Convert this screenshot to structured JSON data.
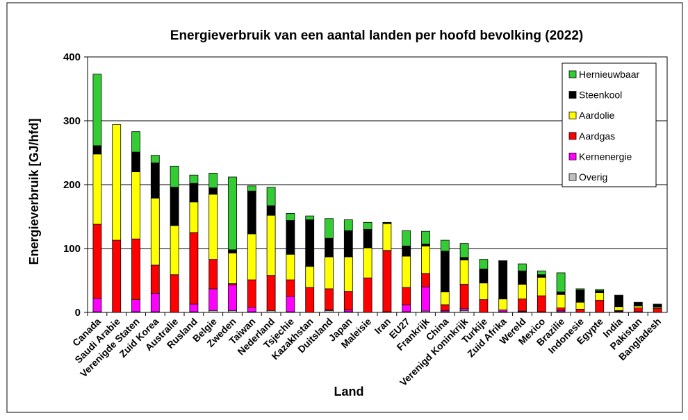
{
  "chart_data": {
    "type": "bar",
    "stacked": true,
    "title": "Energieverbruik van een aantal landen per hoofd bevolking (2022)",
    "xlabel": "Land",
    "ylabel": "Energieverbruik  [GJ/hfd]",
    "ylim": [
      0,
      400
    ],
    "yticks": [
      "0",
      "100",
      "200",
      "300",
      "400"
    ],
    "grid": true,
    "legend_position": "top-right",
    "categories": [
      "Canada",
      "Saudi Arabie",
      "Verenigde Staten",
      "Zuid Korea",
      "Australie",
      "Rusland",
      "Belgie",
      "Zweden",
      "Taiwan",
      "Nederland",
      "Tsjechie",
      "Kazakhstan",
      "Duitsland",
      "Japan",
      "Maleisie",
      "Iran",
      "EU27",
      "Frankrijk",
      "China",
      "Verenigd Koninkrijk",
      "Turkije",
      "Zuid Afrika",
      "Wereld",
      "Mexico",
      "Brazilie",
      "Indonesie",
      "Egypte",
      "India",
      "Pakistan",
      "Bangladesh"
    ],
    "series": [
      {
        "name": "Overig",
        "color": "#c0c0c0",
        "values": [
          1,
          0,
          1,
          1,
          0,
          1,
          3,
          3,
          1,
          3,
          1,
          0,
          3,
          1,
          0,
          0,
          1,
          2,
          1,
          3,
          0,
          1,
          1,
          0,
          1,
          0,
          0,
          1,
          0,
          0
        ]
      },
      {
        "name": "Kernenergie",
        "color": "#ff00ff",
        "values": [
          21,
          0,
          19,
          29,
          0,
          12,
          34,
          40,
          7,
          0,
          24,
          0,
          1,
          3,
          0,
          1,
          11,
          38,
          2,
          3,
          0,
          3,
          1,
          1,
          2,
          0,
          0,
          1,
          1,
          0
        ]
      },
      {
        "name": "Aardgas",
        "color": "#ff0000",
        "values": [
          116,
          113,
          95,
          44,
          59,
          112,
          46,
          2,
          43,
          55,
          26,
          39,
          33,
          29,
          54,
          96,
          27,
          21,
          9,
          38,
          20,
          0,
          19,
          25,
          4,
          5,
          19,
          1,
          6,
          6
        ]
      },
      {
        "name": "Aardolie",
        "color": "#ffff00",
        "values": [
          110,
          181,
          105,
          105,
          77,
          48,
          102,
          48,
          72,
          94,
          40,
          33,
          50,
          54,
          47,
          42,
          49,
          43,
          20,
          38,
          26,
          17,
          23,
          29,
          21,
          11,
          12,
          6,
          3,
          2
        ]
      },
      {
        "name": "Steenkool",
        "color": "#000000",
        "values": [
          13,
          0,
          31,
          55,
          60,
          29,
          10,
          5,
          67,
          15,
          53,
          73,
          29,
          41,
          29,
          1,
          16,
          3,
          64,
          4,
          22,
          59,
          21,
          4,
          4,
          19,
          3,
          17,
          5,
          4
        ]
      },
      {
        "name": "Hernieuwbaar",
        "color": "#33cc33",
        "values": [
          112,
          0,
          32,
          12,
          33,
          13,
          23,
          114,
          8,
          29,
          11,
          6,
          31,
          17,
          11,
          1,
          24,
          20,
          17,
          22,
          15,
          1,
          11,
          6,
          30,
          2,
          2,
          1,
          1,
          1
        ]
      }
    ]
  }
}
